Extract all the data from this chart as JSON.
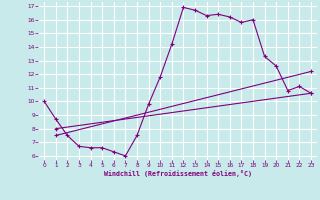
{
  "xlabel": "Windchill (Refroidissement éolien,°C)",
  "bg_color": "#c8eaea",
  "line_color": "#800080",
  "grid_color": "#ffffff",
  "xlim": [
    -0.5,
    23.5
  ],
  "ylim": [
    5.7,
    17.3
  ],
  "xticks": [
    0,
    1,
    2,
    3,
    4,
    5,
    6,
    7,
    8,
    9,
    10,
    11,
    12,
    13,
    14,
    15,
    16,
    17,
    18,
    19,
    20,
    21,
    22,
    23
  ],
  "yticks": [
    6,
    7,
    8,
    9,
    10,
    11,
    12,
    13,
    14,
    15,
    16,
    17
  ],
  "line1_x": [
    0,
    1,
    2,
    3,
    4,
    5,
    6,
    7,
    8,
    9,
    10,
    11,
    12,
    13,
    14,
    15,
    16,
    17,
    18,
    19,
    20,
    21,
    22,
    23
  ],
  "line1_y": [
    10.0,
    8.7,
    7.5,
    6.7,
    6.6,
    6.6,
    6.3,
    6.0,
    7.5,
    9.8,
    11.8,
    14.2,
    16.9,
    16.7,
    16.3,
    16.4,
    16.2,
    15.8,
    16.0,
    13.3,
    12.6,
    10.8,
    11.1,
    10.6
  ],
  "line2_x": [
    1,
    23
  ],
  "line2_y": [
    8.0,
    10.6
  ],
  "line3_x": [
    1,
    23
  ],
  "line3_y": [
    7.5,
    12.2
  ]
}
